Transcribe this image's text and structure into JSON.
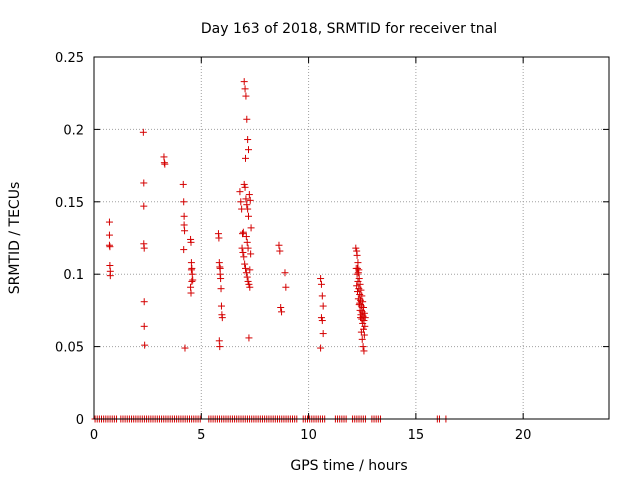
{
  "chart_data": {
    "type": "scatter",
    "title": "Day 163 of 2018, SRMTID for receiver tnal",
    "xlabel": "GPS time / hours",
    "ylabel": "SRMTID / TECUs",
    "xlim": [
      0,
      24
    ],
    "ylim": [
      0,
      0.25
    ],
    "xticks": [
      "0",
      "5",
      "10",
      "15",
      "20"
    ],
    "yticks": [
      "0",
      "0.05",
      "0.1",
      "0.15",
      "0.2",
      "0.25"
    ],
    "grid": true,
    "marker": "plus",
    "color": "#d40000",
    "series": [
      {
        "x": [
          0.72,
          0.72,
          0.72,
          0.74,
          0.74,
          0.76,
          0.76,
          2.3,
          2.32,
          2.32,
          2.32,
          2.34,
          2.34,
          2.34,
          2.36,
          3.26,
          3.28,
          3.3,
          4.16,
          4.18,
          4.2,
          4.2,
          4.22,
          4.24,
          4.18,
          4.5,
          4.52,
          4.54,
          4.56,
          4.58,
          4.6,
          4.5,
          4.52,
          4.54,
          4.56,
          5.8,
          5.82,
          5.84,
          5.86,
          5.88,
          5.9,
          5.92,
          5.94,
          5.96,
          5.98,
          5.84,
          5.86,
          5.88,
          6.8,
          6.84,
          6.88,
          6.92,
          6.96,
          7.0,
          7.04,
          7.08,
          7.12,
          7.16,
          7.2,
          7.24,
          7.28,
          7.32,
          6.9,
          6.94,
          6.98,
          7.02,
          7.06,
          7.1,
          7.14,
          7.18,
          7.22,
          7.26,
          7.3,
          7.0,
          7.04,
          7.08,
          7.12,
          7.16,
          7.2,
          7.06,
          7.1,
          7.14,
          7.18,
          7.22,
          7.26,
          8.62,
          8.66,
          8.7,
          8.74,
          8.9,
          8.94,
          10.56,
          10.6,
          10.64,
          10.68,
          10.6,
          10.64,
          10.68,
          10.56,
          12.2,
          12.24,
          12.28,
          12.32,
          12.36,
          12.4,
          12.44,
          12.48,
          12.52,
          12.56,
          12.6,
          12.64,
          12.22,
          12.26,
          12.3,
          12.34,
          12.38,
          12.42,
          12.46,
          12.5,
          12.54,
          12.58,
          12.62,
          12.24,
          12.28,
          12.32,
          12.36,
          12.4,
          12.44,
          12.48,
          12.52,
          12.56,
          12.6,
          12.26,
          12.3,
          12.34,
          12.38,
          12.42,
          12.46,
          12.5,
          12.54,
          12.58
        ],
        "y": [
          0.136,
          0.127,
          0.12,
          0.119,
          0.106,
          0.102,
          0.099,
          0.198,
          0.163,
          0.147,
          0.121,
          0.118,
          0.081,
          0.064,
          0.051,
          0.181,
          0.177,
          0.176,
          0.162,
          0.15,
          0.14,
          0.134,
          0.13,
          0.049,
          0.117,
          0.124,
          0.122,
          0.108,
          0.104,
          0.1,
          0.096,
          0.091,
          0.087,
          0.103,
          0.095,
          0.128,
          0.125,
          0.108,
          0.105,
          0.1,
          0.097,
          0.09,
          0.078,
          0.072,
          0.07,
          0.054,
          0.05,
          0.104,
          0.157,
          0.15,
          0.145,
          0.128,
          0.129,
          0.162,
          0.16,
          0.152,
          0.148,
          0.145,
          0.14,
          0.155,
          0.151,
          0.132,
          0.118,
          0.115,
          0.112,
          0.107,
          0.104,
          0.101,
          0.098,
          0.095,
          0.093,
          0.091,
          0.114,
          0.233,
          0.228,
          0.223,
          0.207,
          0.193,
          0.186,
          0.18,
          0.126,
          0.122,
          0.118,
          0.056,
          0.103,
          0.12,
          0.116,
          0.077,
          0.074,
          0.101,
          0.091,
          0.097,
          0.093,
          0.085,
          0.078,
          0.07,
          0.068,
          0.059,
          0.049,
          0.118,
          0.116,
          0.104,
          0.101,
          0.097,
          0.093,
          0.089,
          0.085,
          0.081,
          0.077,
          0.073,
          0.07,
          0.104,
          0.1,
          0.095,
          0.09,
          0.086,
          0.082,
          0.078,
          0.074,
          0.071,
          0.068,
          0.064,
          0.092,
          0.088,
          0.083,
          0.079,
          0.075,
          0.072,
          0.069,
          0.066,
          0.062,
          0.058,
          0.113,
          0.108,
          0.103,
          0.08,
          0.07,
          0.06,
          0.055,
          0.05,
          0.047
        ]
      },
      {
        "x": [
          0.05,
          0.15,
          0.25,
          0.35,
          0.45,
          0.55,
          0.65,
          0.75,
          0.85,
          0.95,
          1.05,
          1.25,
          1.35,
          1.45,
          1.55,
          1.65,
          1.75,
          1.85,
          1.95,
          2.05,
          2.15,
          2.25,
          2.35,
          2.45,
          2.55,
          2.65,
          2.75,
          2.85,
          2.95,
          3.05,
          3.15,
          3.25,
          3.35,
          3.45,
          3.55,
          3.65,
          3.75,
          3.85,
          3.95,
          4.05,
          4.15,
          4.25,
          4.35,
          4.45,
          4.55,
          4.65,
          4.75,
          4.85,
          4.95,
          5.35,
          5.45,
          5.55,
          5.65,
          5.75,
          5.85,
          5.95,
          6.05,
          6.15,
          6.25,
          6.35,
          6.45,
          6.55,
          6.65,
          6.75,
          6.85,
          6.95,
          7.05,
          7.15,
          7.25,
          7.35,
          7.45,
          7.55,
          7.65,
          7.75,
          7.85,
          7.95,
          8.05,
          8.15,
          8.25,
          8.35,
          8.45,
          8.55,
          8.65,
          8.75,
          8.85,
          8.95,
          9.05,
          9.15,
          9.25,
          9.35,
          9.45,
          9.75,
          9.85,
          9.95,
          10.05,
          10.15,
          10.25,
          10.35,
          10.45,
          10.55,
          10.65,
          10.75,
          11.25,
          11.35,
          11.45,
          11.55,
          11.65,
          11.75,
          12.05,
          12.15,
          12.25,
          12.35,
          12.45,
          12.55,
          12.65,
          12.95,
          13.05,
          13.15,
          13.25,
          13.35,
          16.0,
          16.1,
          16.4
        ],
        "y": [
          0,
          0,
          0,
          0,
          0,
          0,
          0,
          0,
          0,
          0,
          0,
          0,
          0,
          0,
          0,
          0,
          0,
          0,
          0,
          0,
          0,
          0,
          0,
          0,
          0,
          0,
          0,
          0,
          0,
          0,
          0,
          0,
          0,
          0,
          0,
          0,
          0,
          0,
          0,
          0,
          0,
          0,
          0,
          0,
          0,
          0,
          0,
          0,
          0,
          0,
          0,
          0,
          0,
          0,
          0,
          0,
          0,
          0,
          0,
          0,
          0,
          0,
          0,
          0,
          0,
          0,
          0,
          0,
          0,
          0,
          0,
          0,
          0,
          0,
          0,
          0,
          0,
          0,
          0,
          0,
          0,
          0,
          0,
          0,
          0,
          0,
          0,
          0,
          0,
          0,
          0,
          0,
          0,
          0,
          0,
          0,
          0,
          0,
          0,
          0,
          0,
          0,
          0,
          0,
          0,
          0,
          0,
          0,
          0,
          0,
          0,
          0,
          0,
          0,
          0,
          0,
          0,
          0,
          0,
          0,
          0,
          0,
          0
        ]
      }
    ]
  }
}
